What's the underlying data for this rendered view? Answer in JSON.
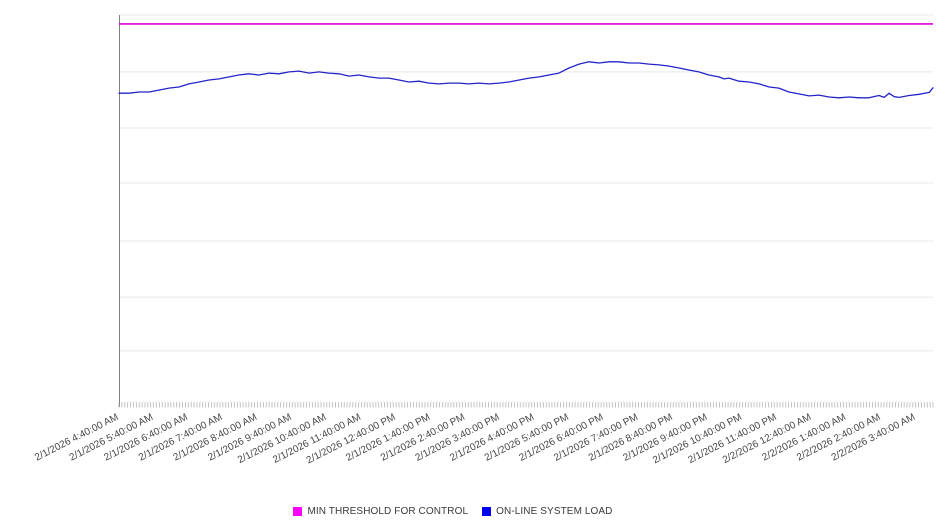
{
  "page": {
    "background": "#ffffff",
    "title": ""
  },
  "chart_data": {
    "type": "line",
    "title": "",
    "xlabel": "",
    "ylabel": "",
    "grid": "horizontal-only",
    "legend_position": "bottom-center",
    "x_axis": {
      "label_rotation_deg": -27,
      "hours_span": 23.5,
      "minor_tick_count": 283,
      "tick_labels": [
        "2/1/2026 4:40:00 AM",
        "2/1/2026 5:40:00 AM",
        "2/1/2026 6:40:00 AM",
        "2/1/2026 7:40:00 AM",
        "2/1/2026 8:40:00 AM",
        "2/1/2026 9:40:00 AM",
        "2/1/2026 10:40:00 AM",
        "2/1/2026 11:40:00 AM",
        "2/1/2026 12:40:00 PM",
        "2/1/2026 1:40:00 PM",
        "2/1/2026 2:40:00 PM",
        "2/1/2026 3:40:00 PM",
        "2/1/2026 4:40:00 PM",
        "2/1/2026 5:40:00 PM",
        "2/1/2026 6:40:00 PM",
        "2/1/2026 7:40:00 PM",
        "2/1/2026 8:40:00 PM",
        "2/1/2026 9:40:00 PM",
        "2/1/2026 10:40:00 PM",
        "2/1/2026 11:40:00 PM",
        "2/2/2026 12:40:00 AM",
        "2/2/2026 1:40:00 AM",
        "2/2/2026 2:40:00 AM",
        "2/2/2026 3:40:00 AM"
      ]
    },
    "y_axis": {
      "labels_visible": false,
      "range": [
        0,
        100
      ],
      "gridline_fractions_from_top": [
        0,
        0.147,
        0.292,
        0.434,
        0.584,
        0.729,
        0.868,
        1
      ]
    },
    "series": [
      {
        "name": "MIN THRESHOLD FOR CONTROL",
        "type": "constant-line",
        "color": "#dd00dd",
        "legend_color": "#ff00ff",
        "value": 97.7
      },
      {
        "name": "ON-LINE SYSTEM LOAD",
        "type": "line",
        "color": "#2424c8",
        "legend_color": "#0000f0",
        "points_hours_value": [
          [
            0,
            79.8
          ],
          [
            0.29,
            79.8
          ],
          [
            0.58,
            80.1
          ],
          [
            0.87,
            80.1
          ],
          [
            1.15,
            80.6
          ],
          [
            1.44,
            81.1
          ],
          [
            1.73,
            81.4
          ],
          [
            2.02,
            82.2
          ],
          [
            2.31,
            82.7
          ],
          [
            2.6,
            83.2
          ],
          [
            2.89,
            83.5
          ],
          [
            3.18,
            84
          ],
          [
            3.46,
            84.5
          ],
          [
            3.75,
            84.8
          ],
          [
            4.04,
            84.5
          ],
          [
            4.33,
            85
          ],
          [
            4.62,
            84.8
          ],
          [
            4.91,
            85.3
          ],
          [
            5.2,
            85.5
          ],
          [
            5.49,
            85
          ],
          [
            5.77,
            85.3
          ],
          [
            6.06,
            85
          ],
          [
            6.35,
            84.8
          ],
          [
            6.64,
            84.2
          ],
          [
            6.93,
            84.5
          ],
          [
            7.22,
            84
          ],
          [
            7.51,
            83.7
          ],
          [
            7.79,
            83.7
          ],
          [
            8.08,
            83.2
          ],
          [
            8.37,
            82.7
          ],
          [
            8.66,
            82.9
          ],
          [
            8.95,
            82.4
          ],
          [
            9.24,
            82.2
          ],
          [
            9.53,
            82.4
          ],
          [
            9.82,
            82.4
          ],
          [
            10.1,
            82.2
          ],
          [
            10.39,
            82.4
          ],
          [
            10.68,
            82.2
          ],
          [
            10.97,
            82.4
          ],
          [
            11.26,
            82.7
          ],
          [
            11.55,
            83.2
          ],
          [
            11.84,
            83.7
          ],
          [
            12.13,
            84
          ],
          [
            12.41,
            84.5
          ],
          [
            12.7,
            85
          ],
          [
            12.99,
            86.3
          ],
          [
            13.28,
            87.3
          ],
          [
            13.57,
            87.9
          ],
          [
            13.86,
            87.6
          ],
          [
            14.15,
            87.9
          ],
          [
            14.43,
            87.9
          ],
          [
            14.72,
            87.6
          ],
          [
            15.01,
            87.6
          ],
          [
            15.3,
            87.3
          ],
          [
            15.59,
            87.1
          ],
          [
            15.88,
            86.8
          ],
          [
            16.17,
            86.3
          ],
          [
            16.45,
            85.8
          ],
          [
            16.74,
            85.3
          ],
          [
            17.03,
            84.5
          ],
          [
            17.32,
            84
          ],
          [
            17.47,
            83.5
          ],
          [
            17.61,
            83.7
          ],
          [
            17.9,
            82.9
          ],
          [
            18.19,
            82.7
          ],
          [
            18.48,
            82.2
          ],
          [
            18.77,
            81.4
          ],
          [
            19.05,
            81.1
          ],
          [
            19.34,
            80.1
          ],
          [
            19.63,
            79.6
          ],
          [
            19.92,
            79.1
          ],
          [
            20.21,
            79.3
          ],
          [
            20.5,
            78.8
          ],
          [
            20.79,
            78.6
          ],
          [
            21.08,
            78.8
          ],
          [
            21.36,
            78.6
          ],
          [
            21.65,
            78.6
          ],
          [
            21.94,
            79.2
          ],
          [
            22.09,
            78.7
          ],
          [
            22.23,
            79.8
          ],
          [
            22.38,
            78.9
          ],
          [
            22.52,
            78.7
          ],
          [
            22.81,
            79.2
          ],
          [
            23.1,
            79.5
          ],
          [
            23.39,
            80
          ],
          [
            23.5,
            81.2
          ]
        ]
      }
    ],
    "colors": {
      "gridline": "#e8e8e8",
      "bottom_gridline": "#dcdcdc",
      "y_axis_line": "#808080",
      "minor_tick": "#aaaaaa",
      "tick_label_text": "#474747"
    }
  },
  "legend": {
    "items": [
      {
        "label": "MIN THRESHOLD FOR CONTROL"
      },
      {
        "label": "ON-LINE SYSTEM LOAD"
      }
    ]
  }
}
